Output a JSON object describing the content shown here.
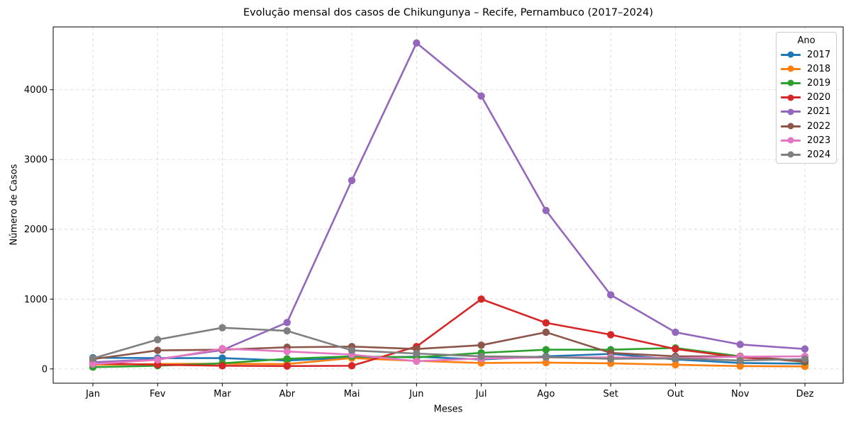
{
  "chart_data": {
    "type": "line",
    "title": "Evolução mensal dos casos de Chikungunya – Recife, Pernambuco (2017–2024)",
    "xlabel": "Meses",
    "ylabel": "Número de Casos",
    "categories": [
      "Jan",
      "Fev",
      "Mar",
      "Abr",
      "Mai",
      "Jun",
      "Jul",
      "Ago",
      "Set",
      "Out",
      "Nov",
      "Dez"
    ],
    "yticks": [
      0,
      1000,
      2000,
      3000,
      4000
    ],
    "ylim": [
      -205,
      4900
    ],
    "grid": true,
    "legend": {
      "title": "Ano",
      "position": "upper right"
    },
    "series": [
      {
        "name": "2017",
        "color": "#1f77b4",
        "values": [
          160,
          155,
          155,
          120,
          160,
          175,
          135,
          180,
          215,
          135,
          85,
          75
        ]
      },
      {
        "name": "2018",
        "color": "#ff7f0e",
        "values": [
          60,
          70,
          75,
          70,
          155,
          115,
          85,
          90,
          80,
          60,
          40,
          35
        ]
      },
      {
        "name": "2019",
        "color": "#2ca02c",
        "values": [
          25,
          45,
          80,
          145,
          180,
          165,
          230,
          275,
          275,
          300,
          180,
          100
        ]
      },
      {
        "name": "2020",
        "color": "#d62728",
        "values": [
          80,
          60,
          45,
          40,
          45,
          320,
          1000,
          660,
          490,
          285,
          165,
          110
        ]
      },
      {
        "name": "2021",
        "color": "#9467bd",
        "values": [
          95,
          140,
          270,
          665,
          2700,
          4670,
          3910,
          2270,
          1060,
          525,
          350,
          285
        ]
      },
      {
        "name": "2022",
        "color": "#8c564b",
        "values": [
          140,
          265,
          275,
          310,
          320,
          285,
          340,
          525,
          230,
          180,
          180,
          115
        ]
      },
      {
        "name": "2023",
        "color": "#e377c2",
        "values": [
          70,
          130,
          290,
          250,
          205,
          110,
          150,
          165,
          165,
          155,
          175,
          180
        ]
      },
      {
        "name": "2024",
        "color": "#7f7f7f",
        "values": [
          150,
          420,
          590,
          545,
          265,
          220,
          180,
          170,
          145,
          150,
          120,
          140
        ]
      }
    ],
    "style": {
      "grid_color": "#cfcfcf",
      "spine_color": "#000000",
      "tick_label_color": "#000000"
    }
  }
}
